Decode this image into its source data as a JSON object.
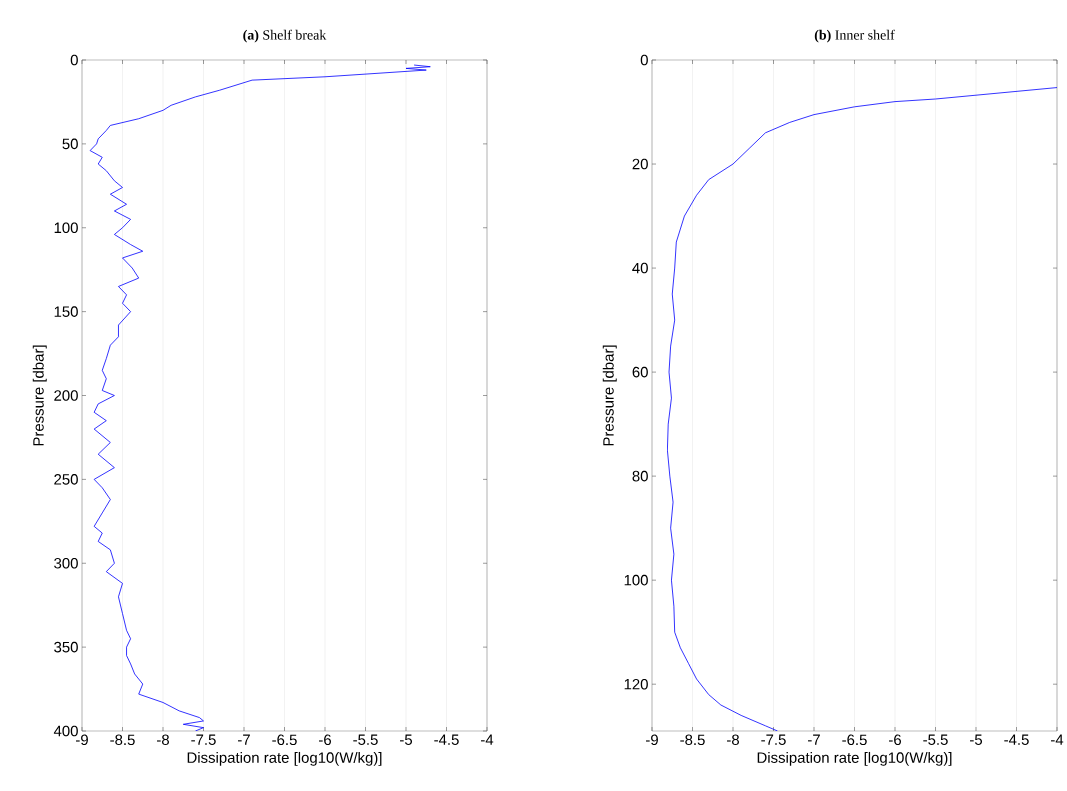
{
  "chart_data": [
    {
      "type": "line",
      "title": "**(a)** Shelf break",
      "xlabel": "Dissipation rate [log10(W/kg)]",
      "ylabel": "Pressure [dbar]",
      "xlim": [
        -9,
        -4
      ],
      "xticks": [
        -9,
        -8.5,
        -8,
        -7.5,
        -7,
        -6.5,
        -6,
        -5.5,
        -5,
        -4.5,
        -4
      ],
      "ylim": [
        400,
        0
      ],
      "yticks": [
        0,
        50,
        100,
        150,
        200,
        250,
        300,
        350,
        400
      ],
      "grid": "x",
      "series": [
        {
          "color": "#0000ff",
          "x": [
            -4.9,
            -4.7,
            -5.0,
            -4.75,
            -6.0,
            -6.9,
            -7.3,
            -7.6,
            -7.9,
            -8.0,
            -8.3,
            -8.65,
            -8.7,
            -8.8,
            -8.82,
            -8.9,
            -8.75,
            -8.8,
            -8.7,
            -8.6,
            -8.5,
            -8.65,
            -8.45,
            -8.6,
            -8.4,
            -8.5,
            -8.6,
            -8.4,
            -8.25,
            -8.5,
            -8.38,
            -8.3,
            -8.55,
            -8.45,
            -8.5,
            -8.4,
            -8.55,
            -8.55,
            -8.65,
            -8.7,
            -8.75,
            -8.7,
            -8.75,
            -8.6,
            -8.8,
            -8.85,
            -8.7,
            -8.85,
            -8.65,
            -8.8,
            -8.6,
            -8.85,
            -8.75,
            -8.65,
            -8.75,
            -8.85,
            -8.75,
            -8.8,
            -8.65,
            -8.6,
            -8.7,
            -8.5,
            -8.55,
            -8.5,
            -8.45,
            -8.4,
            -8.45,
            -8.45,
            -8.4,
            -8.35,
            -8.25,
            -8.3,
            -8.0,
            -7.8,
            -7.55,
            -7.5,
            -7.75,
            -7.5,
            -7.6
          ],
          "values": [
            3,
            4,
            5,
            6,
            10,
            12,
            18,
            22,
            27,
            30,
            35,
            39,
            42,
            47,
            50,
            54,
            58,
            62,
            66,
            72,
            76,
            80,
            86,
            90,
            95,
            100,
            104,
            110,
            114,
            118,
            124,
            130,
            135,
            140,
            145,
            150,
            158,
            165,
            170,
            178,
            185,
            190,
            197,
            200,
            205,
            210,
            215,
            220,
            228,
            235,
            243,
            250,
            255,
            262,
            270,
            278,
            282,
            287,
            292,
            300,
            305,
            312,
            320,
            330,
            340,
            345,
            350,
            355,
            360,
            366,
            372,
            378,
            383,
            388,
            392,
            394,
            396,
            398,
            400
          ]
        }
      ]
    },
    {
      "type": "line",
      "title": "**(b)** Inner shelf",
      "xlabel": "Dissipation rate [log10(W/kg)]",
      "ylabel": "Pressure [dbar]",
      "xlim": [
        -9,
        -4
      ],
      "xticks": [
        -9,
        -8.5,
        -8,
        -7.5,
        -7,
        -6.5,
        -6,
        -5.5,
        -5,
        -4.5,
        -4
      ],
      "ylim": [
        129,
        0
      ],
      "yticks": [
        0,
        20,
        40,
        60,
        80,
        100,
        120
      ],
      "grid": "x",
      "series": [
        {
          "color": "#0000ff",
          "x": [
            -4.0,
            -5.5,
            -6.0,
            -6.5,
            -7.0,
            -7.3,
            -7.6,
            -7.8,
            -8.0,
            -8.3,
            -8.45,
            -8.6,
            -8.7,
            -8.72,
            -8.75,
            -8.72,
            -8.77,
            -8.79,
            -8.76,
            -8.8,
            -8.81,
            -8.78,
            -8.74,
            -8.77,
            -8.73,
            -8.76,
            -8.73,
            -8.72,
            -8.65,
            -8.55,
            -8.45,
            -8.3,
            -8.15,
            -7.9,
            -7.6,
            -7.45
          ],
          "values": [
            5.3,
            7.5,
            8,
            9,
            10.5,
            12,
            14,
            17,
            20,
            23,
            26,
            30,
            35,
            40,
            45,
            50,
            55,
            60,
            65,
            70,
            75,
            80,
            85,
            90,
            95,
            100,
            105,
            110,
            113,
            116,
            119,
            122,
            124,
            126,
            128,
            129
          ]
        }
      ]
    }
  ]
}
